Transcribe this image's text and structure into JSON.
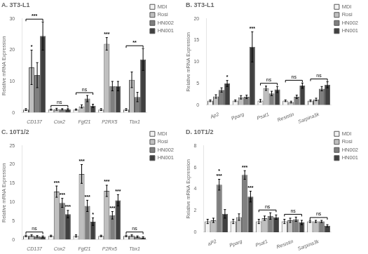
{
  "chart_data": [
    {
      "type": "bar",
      "title": "A. 3T3-L1",
      "categories": [
        "CD137",
        "Cox2",
        "Fgf21",
        "P2RX5",
        "Tbx1"
      ],
      "y_label": "Relative mRNA Expression",
      "ylim": [
        0,
        30
      ],
      "yticks": [
        0,
        10,
        20,
        30
      ],
      "grid": false,
      "legend": "upper right",
      "series": [
        {
          "name": "MDI",
          "color": "#f2f2f2",
          "values": [
            1.0,
            1.0,
            1.0,
            1.0,
            1.0
          ],
          "errors": [
            0.3,
            0.2,
            0.2,
            0.3,
            0.3
          ]
        },
        {
          "name": "Rosi",
          "color": "#bfbfbf",
          "values": [
            14.5,
            1.1,
            2.0,
            22.0,
            10.5
          ],
          "errors": [
            5.5,
            0.3,
            0.5,
            2.0,
            2.5
          ]
        },
        {
          "name": "HN002",
          "color": "#7f7f7f",
          "values": [
            12.0,
            1.1,
            4.5,
            8.5,
            5.0
          ],
          "errors": [
            4.0,
            0.2,
            1.0,
            1.5,
            1.5
          ]
        },
        {
          "name": "HN001",
          "color": "#404040",
          "values": [
            24.5,
            1.1,
            2.2,
            8.5,
            17.0
          ],
          "errors": [
            4.5,
            0.2,
            0.5,
            1.5,
            3.5
          ]
        }
      ],
      "annotations": [
        {
          "text": "*",
          "category": "CD137",
          "series": [
            "Rosi"
          ]
        },
        {
          "text": "***",
          "category": "CD137",
          "series": [
            "MDI",
            "HN001"
          ]
        },
        {
          "text": "ns",
          "category": "Cox2",
          "series": [
            "MDI",
            "HN001"
          ]
        },
        {
          "text": "ns",
          "category": "Fgf21",
          "series": [
            "MDI",
            "HN001"
          ]
        },
        {
          "text": "***",
          "category": "P2RX5",
          "series": [
            "Rosi"
          ]
        },
        {
          "text": "**",
          "category": "Tbx1",
          "series": [
            "MDI",
            "HN001"
          ]
        }
      ]
    },
    {
      "type": "bar",
      "title": "B. 3T3-L1",
      "categories": [
        "Ap2",
        "Pparg",
        "Psat1",
        "Resistin",
        "Sarpina3k"
      ],
      "y_label": "Relative mRNA Expression",
      "ylim": [
        0,
        20
      ],
      "yticks": [
        0,
        5,
        10,
        15,
        20
      ],
      "grid": false,
      "legend": "upper right",
      "series": [
        {
          "name": "MDI",
          "color": "#f2f2f2",
          "values": [
            1.0,
            1.0,
            1.0,
            1.0,
            1.0
          ],
          "errors": [
            0.2,
            0.2,
            0.3,
            0.2,
            0.2
          ]
        },
        {
          "name": "Rosi",
          "color": "#bfbfbf",
          "values": [
            2.0,
            1.8,
            3.9,
            0.7,
            1.3
          ],
          "errors": [
            0.4,
            0.4,
            0.5,
            0.2,
            0.3
          ]
        },
        {
          "name": "HN002",
          "color": "#7f7f7f",
          "values": [
            3.5,
            1.9,
            2.7,
            1.9,
            3.8
          ],
          "errors": [
            0.5,
            0.4,
            0.5,
            0.4,
            0.5
          ]
        },
        {
          "name": "HN001",
          "color": "#404040",
          "values": [
            5.0,
            13.5,
            3.6,
            4.5,
            4.7
          ],
          "errors": [
            0.7,
            3.5,
            0.7,
            0.6,
            0.7
          ]
        }
      ],
      "annotations": [
        {
          "text": "*",
          "category": "Ap2",
          "series": [
            "HN001"
          ]
        },
        {
          "text": "***",
          "category": "Pparg",
          "series": [
            "HN001"
          ]
        },
        {
          "text": "ns",
          "category": "Psat1",
          "series": [
            "MDI",
            "HN001"
          ]
        },
        {
          "text": "ns",
          "category": "Resistin",
          "series": [
            "MDI",
            "HN001"
          ]
        },
        {
          "text": "ns",
          "category": "Sarpina3k",
          "series": [
            "MDI",
            "HN001"
          ]
        }
      ]
    },
    {
      "type": "bar",
      "title": "C. 10T1/2",
      "categories": [
        "CD137",
        "Cox2",
        "Fgf21",
        "P2Rx5",
        "Tbx1"
      ],
      "y_label": "Relative mRNA Expression",
      "ylim": [
        0,
        25
      ],
      "yticks": [
        0,
        5,
        10,
        15,
        20,
        25
      ],
      "grid": false,
      "legend": "upper right",
      "series": [
        {
          "name": "MDI",
          "color": "#f2f2f2",
          "values": [
            1.0,
            1.0,
            1.0,
            1.0,
            1.0
          ],
          "errors": [
            0.2,
            0.2,
            0.3,
            0.2,
            0.2
          ]
        },
        {
          "name": "Rosi",
          "color": "#bfbfbf",
          "values": [
            1.1,
            12.8,
            17.5,
            13.0,
            1.1
          ],
          "errors": [
            0.2,
            1.5,
            2.5,
            1.5,
            0.2
          ]
        },
        {
          "name": "HN002",
          "color": "#7f7f7f",
          "values": [
            0.9,
            9.8,
            9.0,
            6.5,
            0.8
          ],
          "errors": [
            0.2,
            1.2,
            1.5,
            1.0,
            0.2
          ]
        },
        {
          "name": "HN001",
          "color": "#404040",
          "values": [
            0.8,
            6.8,
            4.8,
            10.5,
            0.6
          ],
          "errors": [
            0.2,
            1.0,
            1.0,
            1.5,
            0.2
          ]
        }
      ],
      "annotations": [
        {
          "text": "ns",
          "category": "CD137",
          "series": [
            "MDI",
            "HN001"
          ]
        },
        {
          "text": "***",
          "category": "Cox2",
          "series": [
            "Rosi"
          ]
        },
        {
          "text": "***",
          "category": "Cox2",
          "series": [
            "HN002"
          ]
        },
        {
          "text": "***",
          "category": "Cox2",
          "series": [
            "HN001"
          ]
        },
        {
          "text": "***",
          "category": "Fgf21",
          "series": [
            "Rosi"
          ]
        },
        {
          "text": "***",
          "category": "Fgf21",
          "series": [
            "HN002"
          ]
        },
        {
          "text": "*",
          "category": "Fgf21",
          "series": [
            "HN001"
          ]
        },
        {
          "text": "***",
          "category": "P2Rx5",
          "series": [
            "Rosi"
          ]
        },
        {
          "text": "***",
          "category": "P2Rx5",
          "series": [
            "HN002"
          ]
        },
        {
          "text": "***",
          "category": "P2Rx5",
          "series": [
            "HN001"
          ]
        },
        {
          "text": "ns",
          "category": "Tbx1",
          "series": [
            "MDI",
            "HN001"
          ]
        }
      ]
    },
    {
      "type": "bar",
      "title": "D. 10T1/2",
      "categories": [
        "aP2",
        "Pparg",
        "Psat1",
        "Resistin",
        "Sarpina3k"
      ],
      "y_label": "Relative mRNA Expression",
      "ylim": [
        0,
        8
      ],
      "yticks": [
        0,
        2,
        4,
        6,
        8
      ],
      "grid": false,
      "legend": "upper right",
      "series": [
        {
          "name": "MDI",
          "color": "#f2f2f2",
          "values": [
            1.0,
            1.0,
            1.0,
            1.0,
            1.0
          ],
          "errors": [
            0.2,
            0.2,
            0.2,
            0.2,
            0.1
          ]
        },
        {
          "name": "Rosi",
          "color": "#bfbfbf",
          "values": [
            1.1,
            1.4,
            1.3,
            1.1,
            1.0
          ],
          "errors": [
            0.2,
            0.3,
            0.2,
            0.2,
            0.1
          ]
        },
        {
          "name": "HN002",
          "color": "#7f7f7f",
          "values": [
            4.4,
            5.3,
            1.5,
            1.2,
            1.0
          ],
          "errors": [
            0.5,
            0.4,
            0.3,
            0.2,
            0.1
          ]
        },
        {
          "name": "HN001",
          "color": "#404040",
          "values": [
            1.7,
            3.3,
            1.4,
            0.9,
            0.6
          ],
          "errors": [
            0.4,
            0.5,
            0.2,
            0.2,
            0.1
          ]
        }
      ],
      "annotations": [
        {
          "text": "***",
          "category": "aP2",
          "series": [
            "HN002"
          ]
        },
        {
          "text": "***",
          "category": "Pparg",
          "series": [
            "HN002"
          ]
        },
        {
          "text": "*",
          "category": "aP2",
          "series": [
            "HN002"
          ]
        },
        {
          "text": "***",
          "category": "Pparg",
          "series": [
            "HN001"
          ]
        },
        {
          "text": "ns",
          "category": "Psat1",
          "series": [
            "MDI",
            "HN001"
          ]
        },
        {
          "text": "ns",
          "category": "Resistin",
          "series": [
            "MDI",
            "HN001"
          ]
        },
        {
          "text": "ns",
          "category": "Sarpina3k",
          "series": [
            "MDI",
            "HN001"
          ]
        }
      ]
    }
  ]
}
